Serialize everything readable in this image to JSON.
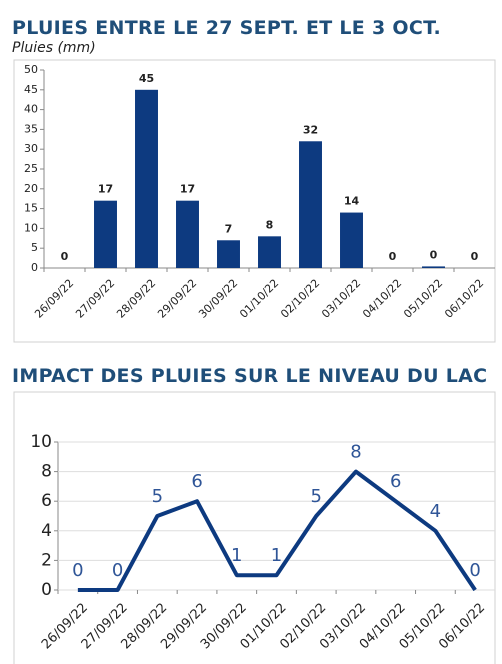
{
  "chart_data": [
    {
      "type": "bar",
      "title": "PLUIES ENTRE LE 27 SEPT. ET LE 3 OCT.",
      "subtitle": "Pluies (mm)",
      "categories": [
        "26/09/22",
        "27/09/22",
        "28/09/22",
        "29/09/22",
        "30/09/22",
        "01/10/22",
        "02/10/22",
        "03/10/22",
        "04/10/22",
        "05/10/22",
        "06/10/22"
      ],
      "values": [
        0,
        17,
        45,
        17,
        7,
        8,
        32,
        14,
        0,
        0.4,
        0
      ],
      "value_labels": [
        "0",
        "17",
        "45",
        "17",
        "7",
        "8",
        "32",
        "14",
        "0",
        "0",
        "0"
      ],
      "color": "#0d3a80",
      "ylim": [
        0,
        50
      ],
      "yticks": [
        0,
        5,
        10,
        15,
        20,
        25,
        30,
        35,
        40,
        45,
        50
      ],
      "grid": false
    },
    {
      "type": "line",
      "title": "IMPACT DES PLUIES SUR LE NIVEAU DU LAC",
      "categories": [
        "26/09/22",
        "27/09/22",
        "28/09/22",
        "29/09/22",
        "30/09/22",
        "01/10/22",
        "02/10/22",
        "03/10/22",
        "04/10/22",
        "05/10/22",
        "06/10/22"
      ],
      "values": [
        0,
        0,
        5,
        6,
        1,
        1,
        5,
        8,
        6,
        4,
        0
      ],
      "color": "#0d3a80",
      "ylim": [
        0,
        10
      ],
      "yticks": [
        0,
        2,
        4,
        6,
        8,
        10
      ],
      "grid": true
    }
  ]
}
